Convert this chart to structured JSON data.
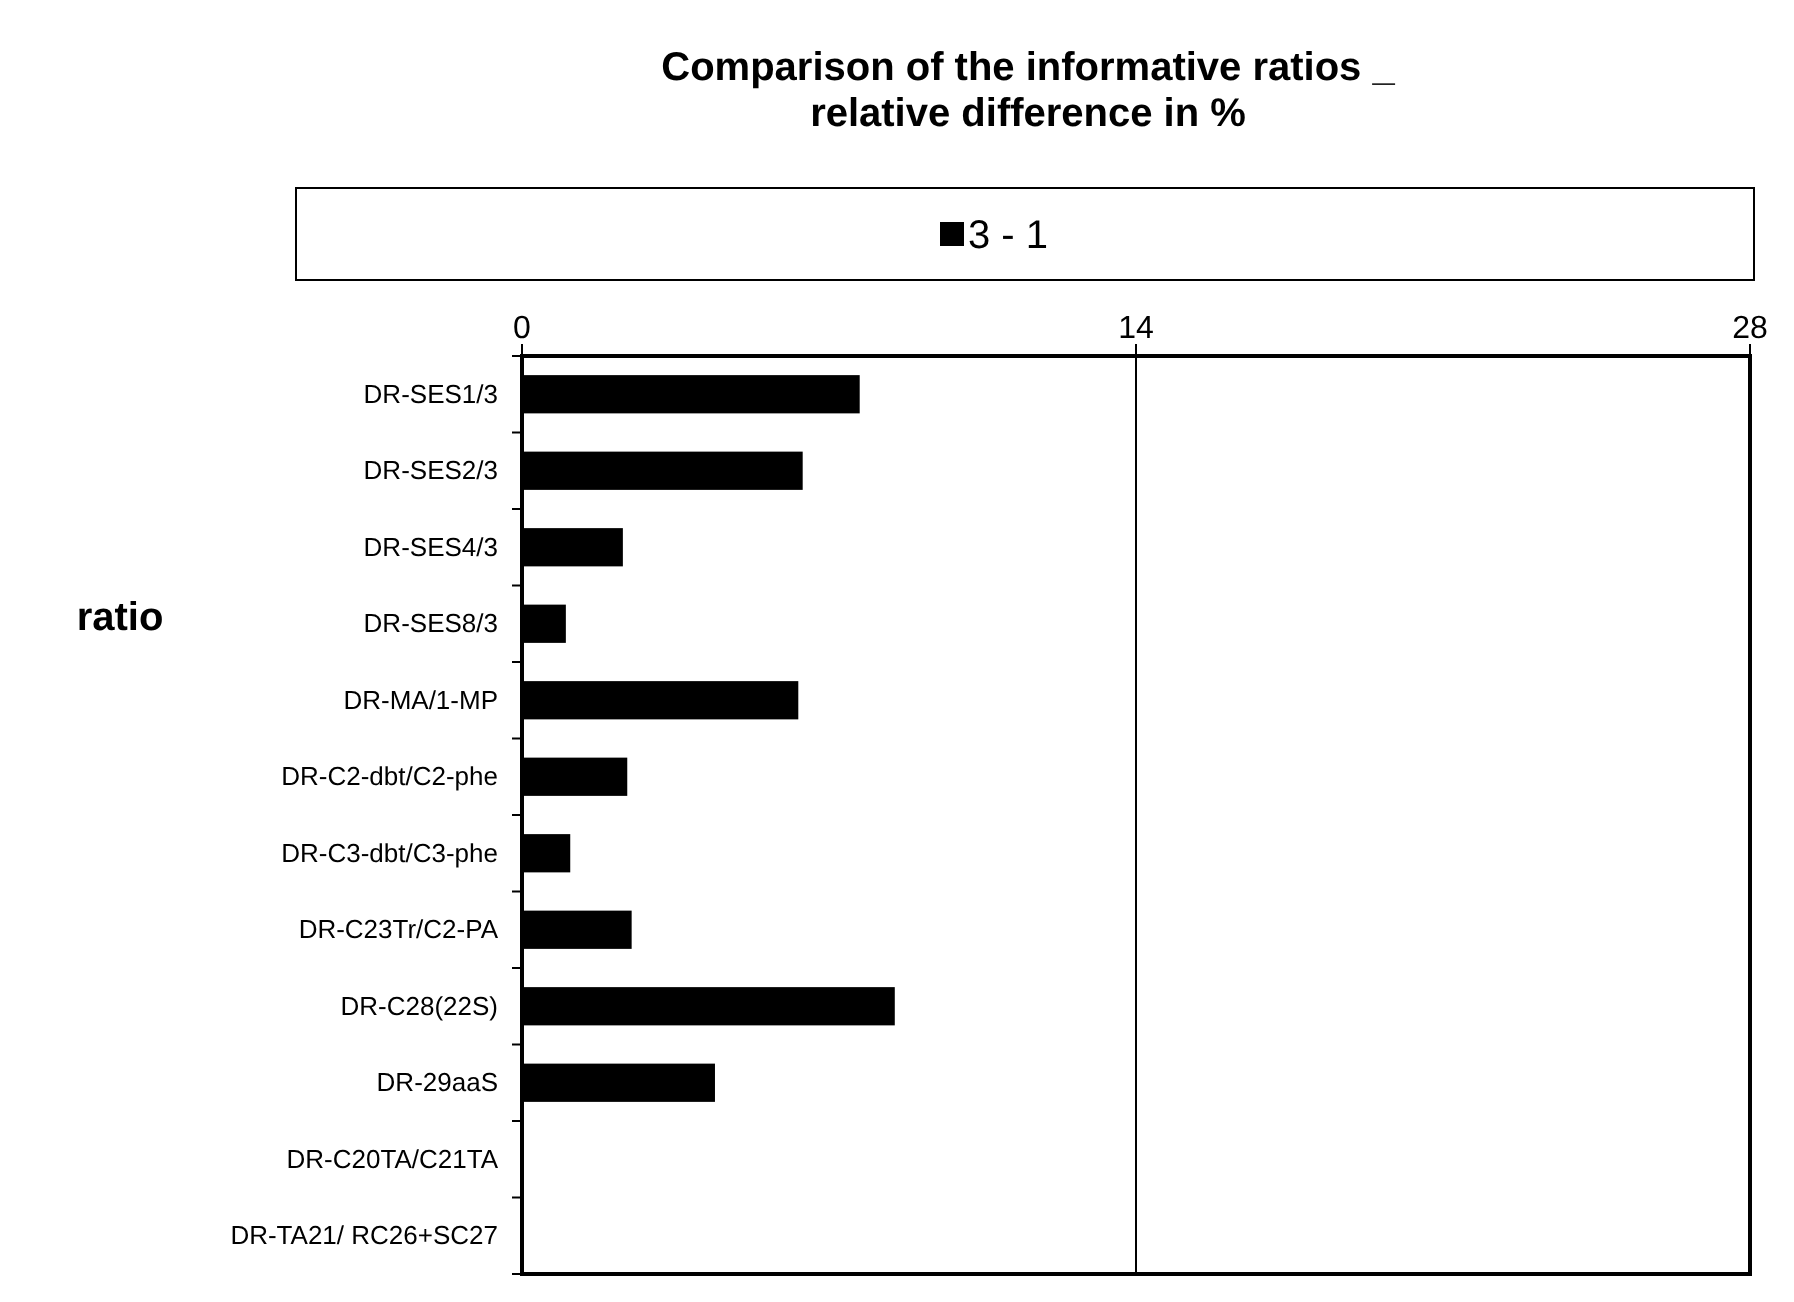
{
  "chart_data": {
    "type": "bar",
    "orientation": "horizontal",
    "title": "Comparison of the informative ratios _ relative difference in %",
    "ylabel": "ratio",
    "categories": [
      "DR-SES1/3",
      "DR-SES2/3",
      "DR-SES4/3",
      "DR-SES8/3",
      "DR-MA/1-MP",
      "DR-C2-dbt/C2-phe",
      "DR-C3-dbt/C3-phe",
      "DR-C23Tr/C2-PA",
      "DR-C28(22S)",
      "DR-29aaS",
      "DR-C20TA/C21TA",
      "DR-TA21/ RC26+SC27"
    ],
    "series": [
      {
        "name": "3 - 1",
        "color": "#000000",
        "values": [
          7.7,
          6.4,
          2.3,
          1.0,
          6.3,
          2.4,
          1.1,
          2.5,
          8.5,
          4.4,
          0,
          0
        ]
      }
    ],
    "xlim": [
      0,
      28
    ],
    "xticks": [
      0,
      14,
      28
    ],
    "grid": "x",
    "legend": "top"
  }
}
